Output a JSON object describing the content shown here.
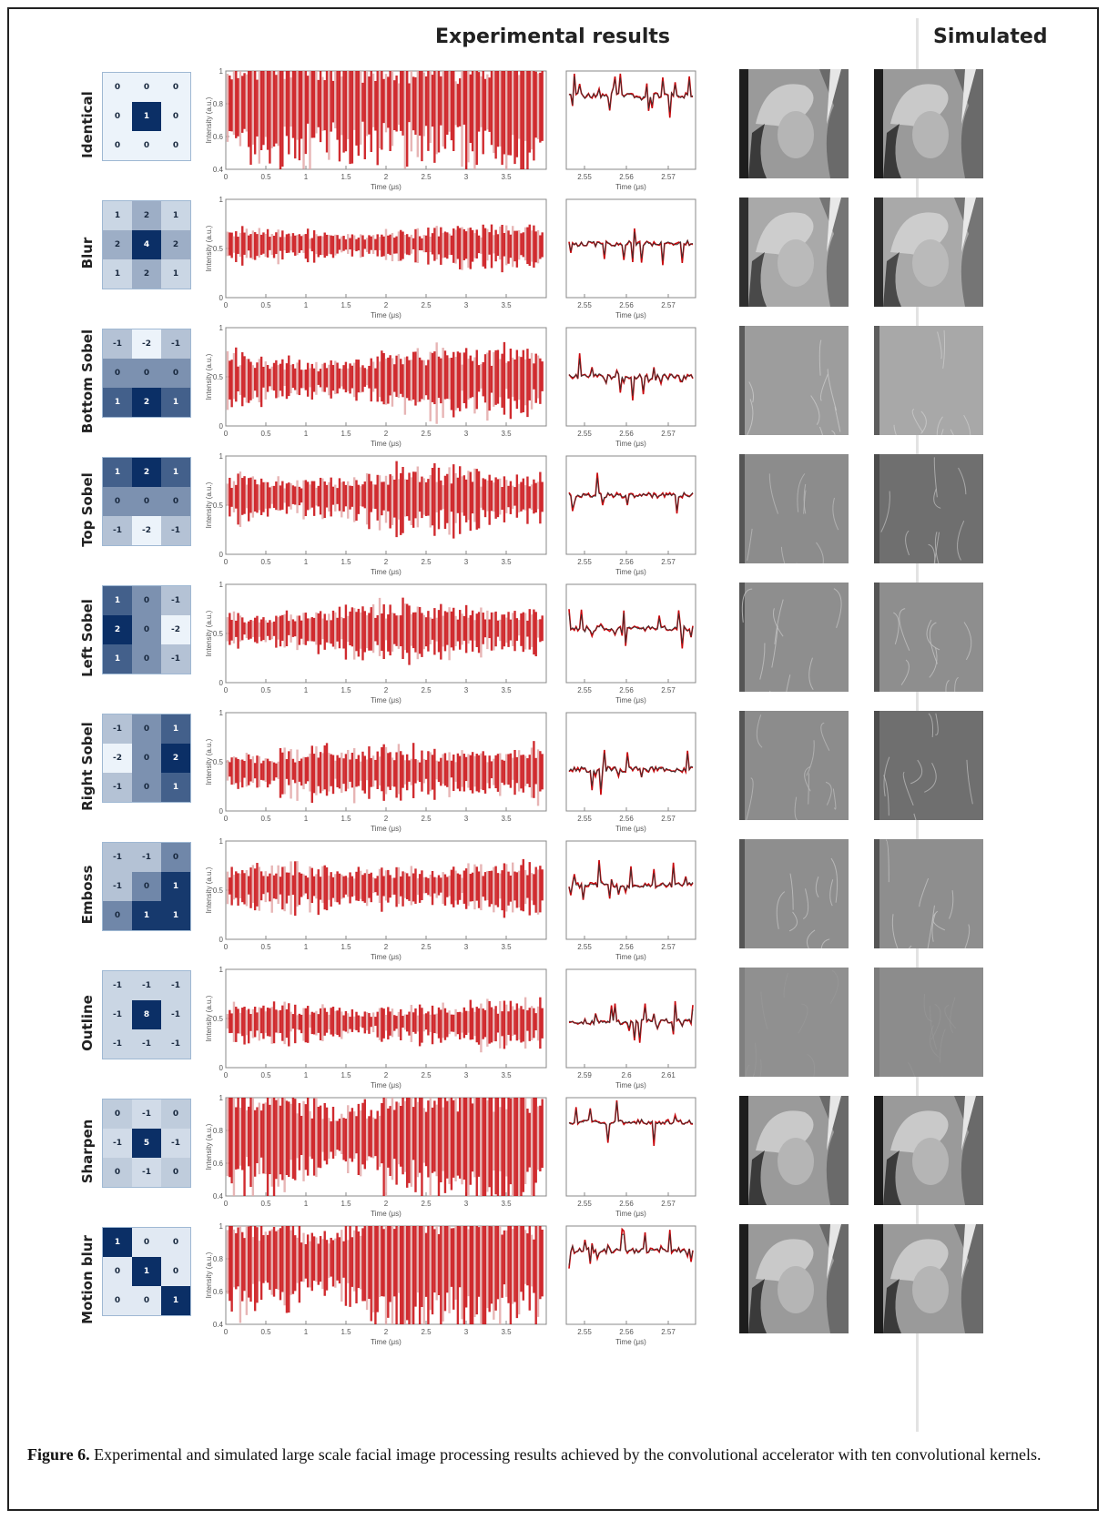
{
  "headers": {
    "experimental": "Experimental results",
    "simulated": "Simulated"
  },
  "axes": {
    "ylabel": "Intensity (a.u.)",
    "xlabel": "Time (μs)",
    "main_xticks": [
      "0",
      "0.5",
      "1",
      "1.5",
      "2",
      "2.5",
      "3",
      "3.5"
    ],
    "zoom_xticks_default": [
      "2.55",
      "2.56",
      "2.57"
    ]
  },
  "caption": {
    "label": "Figure 6.",
    "text": "Experimental and simulated large scale facial image processing results achieved by the convolutional accelerator with ten convolutional kernels."
  },
  "colors": {
    "signal": "#c8060b",
    "signal_dark": "#7a0204",
    "simulated_trace": "#333333",
    "kernel_dark": "#0b2f66"
  },
  "chart_data": [
    {
      "type": "line",
      "kernel": "Identical",
      "matrix": [
        [
          "0",
          "0",
          "0"
        ],
        [
          "0",
          "1",
          "0"
        ],
        [
          "0",
          "0",
          "0"
        ]
      ],
      "shade": [
        [
          0,
          0,
          0
        ],
        [
          0,
          1,
          0
        ],
        [
          0,
          0,
          0
        ]
      ],
      "yticks": [
        "0.4",
        "0.6",
        "0.8",
        "1"
      ],
      "ylim": [
        0.4,
        1.0
      ],
      "center": 0.82,
      "spread": 0.13,
      "zoom_xticks": [
        "2.55",
        "2.56",
        "2.57"
      ],
      "image": "portrait"
    },
    {
      "type": "line",
      "kernel": "Blur",
      "matrix": [
        [
          "1",
          "2",
          "1"
        ],
        [
          "2",
          "4",
          "2"
        ],
        [
          "1",
          "2",
          "1"
        ]
      ],
      "shade": [
        [
          0.15,
          0.35,
          0.15
        ],
        [
          0.35,
          1,
          0.35
        ],
        [
          0.15,
          0.35,
          0.15
        ]
      ],
      "yticks": [
        "0",
        "0.5",
        "1"
      ],
      "ylim": [
        0,
        1
      ],
      "center": 0.55,
      "spread": 0.06,
      "zoom_xticks": [
        "2.55",
        "2.56",
        "2.57"
      ],
      "image": "blur-portrait"
    },
    {
      "type": "line",
      "kernel": "Bottom Sobel",
      "matrix": [
        [
          "-1",
          "-2",
          "-1"
        ],
        [
          "0",
          "0",
          "0"
        ],
        [
          "1",
          "2",
          "1"
        ]
      ],
      "shade": [
        [
          0.25,
          0,
          0.25
        ],
        [
          0.5,
          0.5,
          0.5
        ],
        [
          0.75,
          1,
          0.75
        ]
      ],
      "yticks": [
        "0",
        "0.5",
        "1"
      ],
      "ylim": [
        0,
        1
      ],
      "center": 0.5,
      "spread": 0.1,
      "zoom_xticks": [
        "2.55",
        "2.56",
        "2.57"
      ],
      "image": "edge-light"
    },
    {
      "type": "line",
      "kernel": "Top Sobel",
      "matrix": [
        [
          "1",
          "2",
          "1"
        ],
        [
          "0",
          "0",
          "0"
        ],
        [
          "-1",
          "-2",
          "-1"
        ]
      ],
      "shade": [
        [
          0.75,
          1,
          0.75
        ],
        [
          0.5,
          0.5,
          0.5
        ],
        [
          0.25,
          0,
          0.25
        ]
      ],
      "yticks": [
        "0",
        "0.5",
        "1"
      ],
      "ylim": [
        0,
        1
      ],
      "center": 0.6,
      "spread": 0.1,
      "zoom_xticks": [
        "2.55",
        "2.56",
        "2.57"
      ],
      "image": "edge-dark"
    },
    {
      "type": "line",
      "kernel": "Left Sobel",
      "matrix": [
        [
          "1",
          "0",
          "-1"
        ],
        [
          "2",
          "0",
          "-2"
        ],
        [
          "1",
          "0",
          "-1"
        ]
      ],
      "shade": [
        [
          0.75,
          0.5,
          0.25
        ],
        [
          1,
          0.5,
          0
        ],
        [
          0.75,
          0.5,
          0.25
        ]
      ],
      "yticks": [
        "0",
        "0.5",
        "1"
      ],
      "ylim": [
        0,
        1
      ],
      "center": 0.55,
      "spread": 0.09,
      "zoom_xticks": [
        "2.55",
        "2.56",
        "2.57"
      ],
      "image": "edge-mid"
    },
    {
      "type": "line",
      "kernel": "Right Sobel",
      "matrix": [
        [
          "-1",
          "0",
          "1"
        ],
        [
          "-2",
          "0",
          "2"
        ],
        [
          "-1",
          "0",
          "1"
        ]
      ],
      "shade": [
        [
          0.25,
          0.5,
          0.75
        ],
        [
          0,
          0.5,
          1
        ],
        [
          0.25,
          0.5,
          0.75
        ]
      ],
      "yticks": [
        "0",
        "0.5",
        "1"
      ],
      "ylim": [
        0,
        1
      ],
      "center": 0.42,
      "spread": 0.09,
      "zoom_xticks": [
        "2.55",
        "2.56",
        "2.57"
      ],
      "image": "edge-dark"
    },
    {
      "type": "line",
      "kernel": "Emboss",
      "matrix": [
        [
          "-1",
          "-1",
          "0"
        ],
        [
          "-1",
          "0",
          "1"
        ],
        [
          "0",
          "1",
          "1"
        ]
      ],
      "shade": [
        [
          0.25,
          0.25,
          0.55
        ],
        [
          0.25,
          0.55,
          0.95
        ],
        [
          0.55,
          0.95,
          0.95
        ]
      ],
      "yticks": [
        "0",
        "0.5",
        "1"
      ],
      "ylim": [
        0,
        1
      ],
      "center": 0.55,
      "spread": 0.08,
      "zoom_xticks": [
        "2.55",
        "2.56",
        "2.57"
      ],
      "image": "edge-mid"
    },
    {
      "type": "line",
      "kernel": "Outline",
      "matrix": [
        [
          "-1",
          "-1",
          "-1"
        ],
        [
          "-1",
          "8",
          "-1"
        ],
        [
          "-1",
          "-1",
          "-1"
        ]
      ],
      "shade": [
        [
          0.15,
          0.15,
          0.15
        ],
        [
          0.15,
          1,
          0.15
        ],
        [
          0.15,
          0.15,
          0.15
        ]
      ],
      "yticks": [
        "0",
        "0.5",
        "1"
      ],
      "ylim": [
        0,
        1
      ],
      "center": 0.47,
      "spread": 0.07,
      "zoom_xticks": [
        "2.59",
        "2.6",
        "2.61"
      ],
      "image": "flat"
    },
    {
      "type": "line",
      "kernel": "Sharpen",
      "matrix": [
        [
          "0",
          "-1",
          "0"
        ],
        [
          "-1",
          "5",
          "-1"
        ],
        [
          "0",
          "-1",
          "0"
        ]
      ],
      "shade": [
        [
          0.2,
          0.12,
          0.2
        ],
        [
          0.12,
          1,
          0.12
        ],
        [
          0.2,
          0.12,
          0.2
        ]
      ],
      "yticks": [
        "0.4",
        "0.6",
        "0.8",
        "1"
      ],
      "ylim": [
        0.4,
        1.0
      ],
      "center": 0.78,
      "spread": 0.13,
      "zoom_xticks": [
        "2.55",
        "2.56",
        "2.57"
      ],
      "image": "portrait"
    },
    {
      "type": "line",
      "kernel": "Motion blur",
      "matrix": [
        [
          "1",
          "0",
          "0"
        ],
        [
          "0",
          "1",
          "0"
        ],
        [
          "0",
          "0",
          "1"
        ]
      ],
      "shade": [
        [
          1,
          0.05,
          0.05
        ],
        [
          0.05,
          1,
          0.05
        ],
        [
          0.05,
          0.05,
          1
        ]
      ],
      "yticks": [
        "0.4",
        "0.6",
        "0.8",
        "1"
      ],
      "ylim": [
        0.4,
        1.0
      ],
      "center": 0.8,
      "spread": 0.13,
      "zoom_xticks": [
        "2.55",
        "2.56",
        "2.57"
      ],
      "image": "portrait"
    }
  ]
}
